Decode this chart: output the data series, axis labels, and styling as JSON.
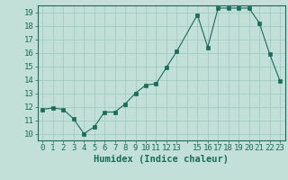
{
  "x": [
    0,
    1,
    2,
    3,
    4,
    5,
    6,
    7,
    8,
    9,
    10,
    11,
    12,
    13,
    15,
    16,
    17,
    18,
    19,
    20,
    21,
    22,
    23
  ],
  "y": [
    11.8,
    11.9,
    11.8,
    11.1,
    10.0,
    10.5,
    11.6,
    11.6,
    12.2,
    13.0,
    13.6,
    13.7,
    14.9,
    16.1,
    18.8,
    16.4,
    19.3,
    19.3,
    19.3,
    19.3,
    18.2,
    15.9,
    13.9
  ],
  "xlim": [
    -0.5,
    23.5
  ],
  "ylim": [
    9.5,
    19.5
  ],
  "yticks": [
    10,
    11,
    12,
    13,
    14,
    15,
    16,
    17,
    18,
    19
  ],
  "xtick_positions": [
    0,
    1,
    2,
    3,
    4,
    5,
    6,
    7,
    8,
    9,
    10,
    11,
    12,
    13,
    14,
    15,
    16,
    17,
    18,
    19,
    20,
    21,
    22,
    23
  ],
  "xtick_labels": [
    "0",
    "1",
    "2",
    "3",
    "4",
    "5",
    "6",
    "7",
    "8",
    "9",
    "10",
    "11",
    "12",
    "13",
    "",
    "15",
    "16",
    "17",
    "18",
    "19",
    "20",
    "21",
    "22",
    "23"
  ],
  "xlabel": "Humidex (Indice chaleur)",
  "line_color": "#1a6b5a",
  "marker_color": "#1a6b5a",
  "bg_color": "#c2e0d8",
  "grid_color": "#9ec8bf",
  "axis_color": "#1a6b5a",
  "xlabel_fontsize": 7.5,
  "tick_fontsize": 6.5
}
